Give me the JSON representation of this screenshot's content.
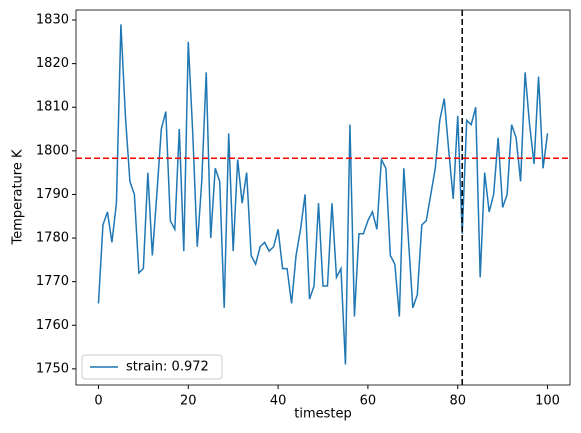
{
  "chart_data": {
    "type": "line",
    "xlabel": "timestep",
    "ylabel": "Temperature K",
    "x": [
      0,
      1,
      2,
      3,
      4,
      5,
      6,
      7,
      8,
      9,
      10,
      11,
      12,
      13,
      14,
      15,
      16,
      17,
      18,
      19,
      20,
      21,
      22,
      23,
      24,
      25,
      26,
      27,
      28,
      29,
      30,
      31,
      32,
      33,
      34,
      35,
      36,
      37,
      38,
      39,
      40,
      41,
      42,
      43,
      44,
      45,
      46,
      47,
      48,
      49,
      50,
      51,
      52,
      53,
      54,
      55,
      56,
      57,
      58,
      59,
      60,
      61,
      62,
      63,
      64,
      65,
      66,
      67,
      68,
      69,
      70,
      71,
      72,
      73,
      74,
      75,
      76,
      77,
      78,
      79,
      80,
      81,
      82,
      83,
      84,
      85,
      86,
      87,
      88,
      89,
      90,
      91,
      92,
      93,
      94,
      95,
      96,
      97,
      98,
      99,
      100
    ],
    "series": [
      {
        "name": "strain: 0.972",
        "color": "#1f77b4",
        "values": [
          1765,
          1783,
          1786,
          1779,
          1788,
          1829,
          1808,
          1793,
          1790,
          1772,
          1773,
          1795,
          1776,
          1790,
          1805,
          1809,
          1784,
          1782,
          1805,
          1777,
          1825,
          1804,
          1778,
          1793,
          1818,
          1780,
          1796,
          1793,
          1764,
          1804,
          1777,
          1798,
          1788,
          1795,
          1776,
          1774,
          1778,
          1779,
          1777,
          1778,
          1782,
          1773,
          1773,
          1765,
          1776,
          1782,
          1790,
          1766,
          1769,
          1788,
          1769,
          1769,
          1788,
          1771,
          1773,
          1751,
          1806,
          1762,
          1781,
          1781,
          1784,
          1786,
          1782,
          1798,
          1796,
          1776,
          1774,
          1762,
          1796,
          1780,
          1764,
          1767,
          1783,
          1784,
          1790,
          1796,
          1807,
          1812,
          1800,
          1789,
          1808,
          1781,
          1807,
          1806,
          1810,
          1771,
          1795,
          1786,
          1790,
          1803,
          1787,
          1790,
          1806,
          1803,
          1793,
          1818,
          1806,
          1797,
          1817,
          1796,
          1804
        ]
      }
    ],
    "xlim": [
      -5,
      105
    ],
    "ylim": [
      1746.3,
      1832.3
    ],
    "xticks": [
      0,
      20,
      40,
      60,
      80,
      100
    ],
    "yticks": [
      1750,
      1760,
      1770,
      1780,
      1790,
      1800,
      1810,
      1820,
      1830
    ],
    "hline": {
      "value": 1798.3,
      "color": "#ff0000"
    },
    "vline": {
      "value": 81,
      "color": "#000000"
    },
    "legend": "lower left"
  }
}
